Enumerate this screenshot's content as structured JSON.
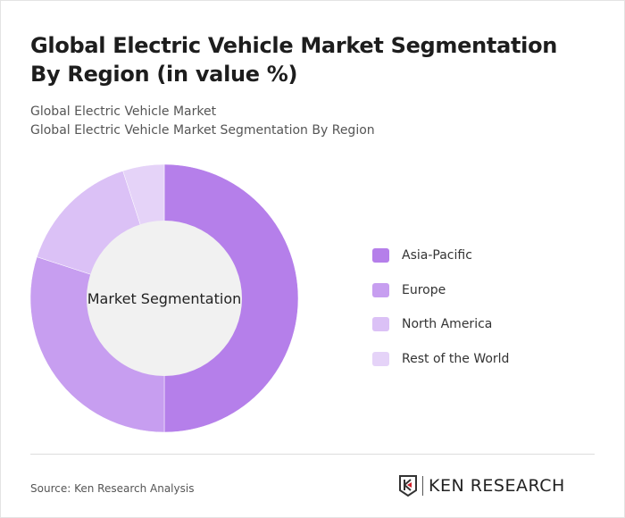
{
  "title": "Global Electric Vehicle Market Segmentation By Region (in value %)",
  "subtitle1": "Global Electric Vehicle Market",
  "subtitle2": "Global Electric Vehicle Market Segmentation By Region",
  "source": "Source: Ken Research Analysis",
  "logo_text": "KEN RESEARCH",
  "chart_data": {
    "type": "pie",
    "variant": "donut",
    "center_label": "Market Segmentation",
    "categories": [
      "Asia-Pacific",
      "Europe",
      "North America",
      "Rest of the World"
    ],
    "values": [
      50,
      30,
      15,
      5
    ],
    "colors": [
      "#b57fea",
      "#c79ef0",
      "#dbc1f6",
      "#e5d3f8"
    ],
    "legend_position": "right"
  }
}
